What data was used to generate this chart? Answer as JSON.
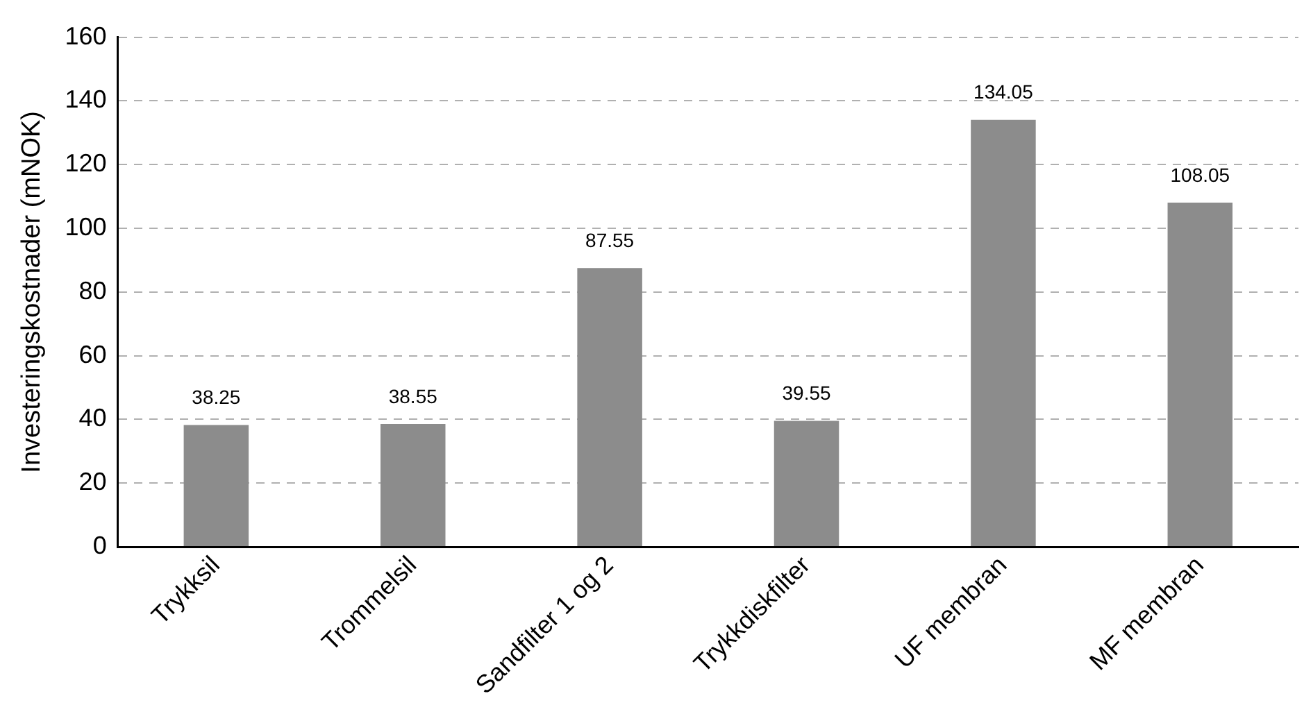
{
  "chart_data": {
    "type": "bar",
    "ylabel": "Investeringskostnader (mNOK)",
    "categories": [
      "Trykksil",
      "Trommelsil",
      "Sandfilter 1 og 2",
      "Trykkdiskfilter",
      "UF membran",
      "MF membran"
    ],
    "values": [
      38.25,
      38.55,
      87.55,
      39.55,
      134.05,
      108.05
    ],
    "color": "#8c8c8c",
    "ylim": [
      0,
      160
    ],
    "yticks": [
      0,
      20,
      40,
      60,
      80,
      100,
      120,
      140,
      160
    ],
    "grid": "y",
    "data_labels": true,
    "legend": false
  }
}
